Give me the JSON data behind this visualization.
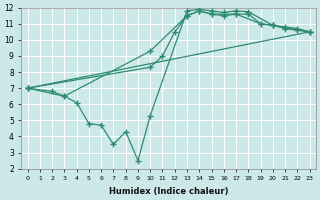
{
  "xlabel": "Humidex (Indice chaleur)",
  "background_color": "#cce8e8",
  "grid_color": "#ffffff",
  "line_color": "#2e8b72",
  "xlim": [
    -0.5,
    23.5
  ],
  "ylim": [
    2,
    12
  ],
  "xticks": [
    0,
    1,
    2,
    3,
    4,
    5,
    6,
    7,
    8,
    9,
    10,
    11,
    12,
    13,
    14,
    15,
    16,
    17,
    18,
    19,
    20,
    21,
    22,
    23
  ],
  "yticks": [
    2,
    3,
    4,
    5,
    6,
    7,
    8,
    9,
    10,
    11,
    12
  ],
  "line1_x": [
    0,
    2,
    3,
    4,
    5,
    6,
    7,
    8,
    9,
    10,
    13,
    14,
    15,
    16,
    17,
    18,
    20,
    21,
    22,
    23
  ],
  "line1_y": [
    7.0,
    6.8,
    6.5,
    6.1,
    4.8,
    4.7,
    3.5,
    4.3,
    2.5,
    5.3,
    11.8,
    11.9,
    11.8,
    11.7,
    11.8,
    11.75,
    10.9,
    10.8,
    10.7,
    10.5
  ],
  "line2_x": [
    0,
    23
  ],
  "line2_y": [
    7.0,
    10.5
  ],
  "line3_x": [
    0,
    3,
    10,
    13,
    14,
    15,
    16,
    17,
    18,
    19,
    20,
    21,
    22,
    23
  ],
  "line3_y": [
    7.0,
    6.5,
    9.3,
    11.5,
    11.8,
    11.6,
    11.5,
    11.6,
    11.6,
    11.0,
    10.9,
    10.7,
    10.6,
    10.5
  ],
  "line4_x": [
    0,
    10,
    11,
    12,
    13,
    14,
    15,
    17,
    19,
    20,
    23
  ],
  "line4_y": [
    7.0,
    8.3,
    9.0,
    10.5,
    11.5,
    11.8,
    11.6,
    11.6,
    11.0,
    10.9,
    10.5
  ],
  "marker": "+",
  "markersize": 4,
  "linewidth": 0.9
}
